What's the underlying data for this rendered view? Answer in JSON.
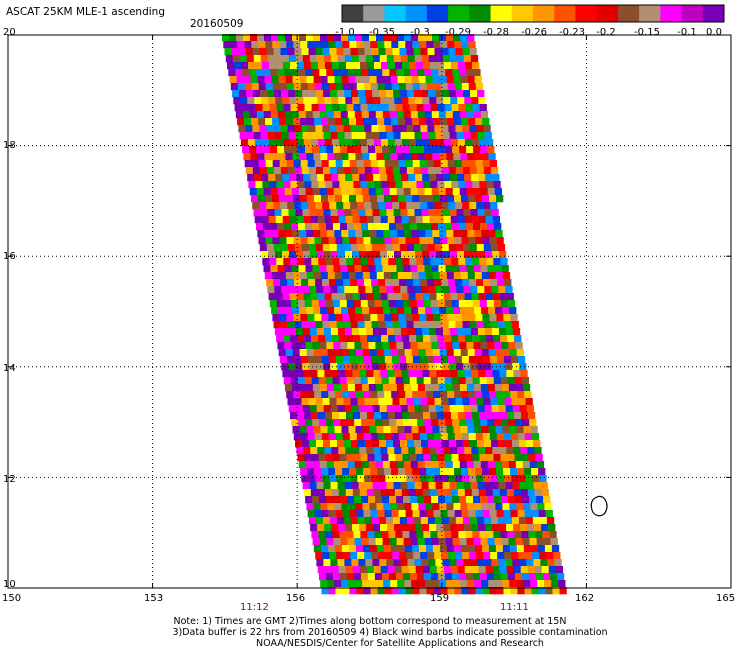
{
  "header": {
    "title": "ASCAT 25KM MLE-1 ascending",
    "date": "20160509"
  },
  "legend": {
    "colors": [
      "#404040",
      "#9a9a9a",
      "#00c8ff",
      "#0090ff",
      "#0040e0",
      "#00b400",
      "#008c00",
      "#ffff00",
      "#ffc800",
      "#ff9600",
      "#ff5000",
      "#ff0000",
      "#e00000",
      "#8c4f2b",
      "#b09070",
      "#ff00ff",
      "#c000c0",
      "#7800b4"
    ],
    "tick_labels": [
      "-1.0",
      "-0.35",
      "-0.3",
      "-0.29",
      "-0.28",
      "-0.26",
      "-0.23",
      "-0.2",
      "-0.15",
      "-0.1",
      "0.0"
    ]
  },
  "axes": {
    "lat_labels": [
      "20",
      "18",
      "16",
      "14",
      "12",
      "10"
    ],
    "lon_labels": [
      "150",
      "153",
      "156",
      "159",
      "162",
      "165"
    ]
  },
  "times": {
    "left": "11:12",
    "right": "11:11"
  },
  "notes": {
    "line1": "Note: 1) Times are GMT 2)Times along bottom correspond to measurement at 15N",
    "line2": "3)Data buffer is 22 hrs from 20160509 4) Black wind barbs indicate possible contamination",
    "line3": "NOAA/NESDIS/Center for Satellite Applications and Research"
  },
  "swath": {
    "palette": [
      "#ff0000",
      "#ff9600",
      "#ffc800",
      "#ffff00",
      "#00b400",
      "#0040e0",
      "#0090ff",
      "#ff5000",
      "#8c4f2b",
      "#b09070",
      "#ff00ff",
      "#7800b4",
      "#e00000",
      "#008c00"
    ]
  }
}
